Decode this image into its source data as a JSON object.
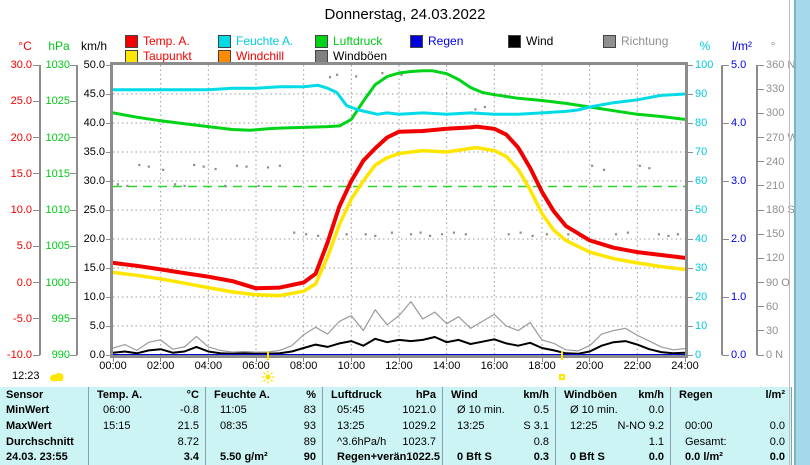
{
  "title": "Donnerstag, 24.03.2022",
  "footer": {
    "time_label": "12:23"
  },
  "legend": {
    "row1": [
      {
        "label": "Temp. A.",
        "swatch": "#f20000",
        "text_color": "#f20000"
      },
      {
        "label": "Feuchte A.",
        "swatch": "#00dbe6",
        "text_color": "#00ccdd"
      },
      {
        "label": "Luftdruck",
        "swatch": "#00d318",
        "text_color": "#00c818"
      },
      {
        "label": "Regen",
        "swatch": "#0000d9",
        "text_color": "#0000e6"
      },
      {
        "label": "Wind",
        "swatch": "#000000",
        "text_color": "#000000"
      },
      {
        "label": "Richtung",
        "swatch": "#8f8f8f",
        "text_color": "#8f8f8f"
      }
    ],
    "row2": [
      {
        "label": "Taupunkt",
        "swatch": "#ffe600",
        "text_color": "#f20000"
      },
      {
        "label": "Windchill",
        "swatch": "#ff8c00",
        "text_color": "#f20000"
      },
      {
        "label": "Windböen",
        "swatch": "#808080",
        "text_color": "#000000"
      }
    ]
  },
  "axes": {
    "temp": {
      "unit": "°C",
      "color": "#f20000",
      "ticks": [
        "30.0",
        "25.0",
        "20.0",
        "15.0",
        "10.0",
        "5.0",
        "0.0",
        "-5.0",
        "-10.0"
      ]
    },
    "pressure": {
      "unit": "hPa",
      "color": "#00c818",
      "ticks": [
        "1030",
        "1025",
        "1020",
        "1015",
        "1010",
        "1005",
        "1000",
        "995",
        "990"
      ]
    },
    "wind": {
      "unit": "km/h",
      "color": "#000000",
      "ticks": [
        "50.0",
        "45.0",
        "40.0",
        "35.0",
        "30.0",
        "25.0",
        "20.0",
        "15.0",
        "10.0",
        "5.0",
        "0.0"
      ]
    },
    "humidity": {
      "unit": "%",
      "color": "#00ccdd",
      "ticks": [
        "100",
        "90",
        "80",
        "70",
        "60",
        "50",
        "40",
        "30",
        "20",
        "10",
        "0"
      ]
    },
    "rain": {
      "unit": "l/m²",
      "color": "#0000e6",
      "ticks": [
        "5.0",
        "4.0",
        "3.0",
        "2.0",
        "1.0",
        "0.0"
      ]
    },
    "direction": {
      "unit": "°",
      "color": "#8f8f8f",
      "ticks": [
        "360 N",
        "330",
        "300",
        "270 W",
        "240",
        "210",
        "180 S",
        "150",
        "120",
        "90 O",
        "60",
        "30",
        "0 N"
      ]
    }
  },
  "x_axis": {
    "labels": [
      "00:00",
      "02:00",
      "04:00",
      "06:00",
      "08:00",
      "10:00",
      "12:00",
      "14:00",
      "16:00",
      "18:00",
      "20:00",
      "22:00",
      "24:00"
    ]
  },
  "sun": {
    "sunrise_hour": 6.5,
    "sunset_hour": 18.85
  },
  "chart_data": {
    "type": "line",
    "x_unit": "hour",
    "axis_ranges": {
      "temp": [
        -10,
        30
      ],
      "pressure": [
        990,
        1030
      ],
      "wind": [
        0,
        50
      ],
      "humidity": [
        0,
        100
      ],
      "rain": [
        0,
        5
      ],
      "direction": [
        0,
        360
      ]
    },
    "reference_line": {
      "axis": "pressure",
      "value": 1013.25,
      "color": "#2fd32f",
      "style": "dashed"
    },
    "series": [
      {
        "name": "Regen",
        "axis": "rain",
        "color": "#0000d9",
        "width": 2,
        "x": [
          0,
          24
        ],
        "values": [
          0,
          0
        ]
      },
      {
        "name": "Luftdruck",
        "axis": "pressure",
        "color": "#00d318",
        "width": 3,
        "x": [
          0,
          1,
          2,
          3,
          4,
          5,
          5.75,
          6.5,
          7,
          8,
          9,
          9.5,
          10,
          10.5,
          11,
          11.5,
          12,
          12.5,
          13,
          13.4,
          14,
          14.5,
          15,
          15.5,
          16,
          17,
          18,
          19,
          20,
          21,
          22,
          23,
          24
        ],
        "values": [
          1023.4,
          1022.8,
          1022.3,
          1021.9,
          1021.5,
          1021.1,
          1021.0,
          1021.2,
          1021.3,
          1021.4,
          1021.5,
          1021.6,
          1022.5,
          1025.0,
          1027.3,
          1028.4,
          1028.9,
          1029.1,
          1029.2,
          1029.2,
          1028.8,
          1028.0,
          1026.9,
          1026.2,
          1025.9,
          1025.4,
          1025.1,
          1024.7,
          1024.2,
          1023.7,
          1023.2,
          1022.9,
          1022.5
        ]
      },
      {
        "name": "Feuchte A.",
        "axis": "humidity",
        "color": "#00dbe6",
        "width": 3,
        "x": [
          0,
          1,
          2,
          3,
          4,
          5,
          6,
          7,
          8,
          8.6,
          9,
          9.4,
          9.8,
          10.3,
          11.1,
          11.5,
          12,
          13,
          14,
          15,
          16,
          17,
          18,
          19,
          19.5,
          20,
          21,
          22,
          23,
          24
        ],
        "values": [
          91.5,
          91.5,
          91.5,
          91.5,
          91.5,
          92,
          92,
          92.5,
          92.5,
          93,
          92,
          90.5,
          86,
          84.5,
          83,
          83.5,
          83,
          83.5,
          83,
          83.5,
          83,
          83,
          83.5,
          84,
          84.5,
          85.5,
          87,
          88,
          89.5,
          90
        ]
      },
      {
        "name": "Taupunkt",
        "axis": "temp",
        "color": "#ffe600",
        "width": 3.5,
        "x": [
          0,
          1,
          2,
          3,
          4,
          5,
          6,
          7,
          8,
          8.5,
          9,
          9.5,
          10,
          10.5,
          11,
          11.5,
          12,
          13,
          14,
          15,
          15.25,
          16,
          16.5,
          17,
          17.5,
          18,
          18.5,
          19,
          20,
          21,
          22,
          23,
          24
        ],
        "values": [
          1.4,
          1.0,
          0.5,
          -0.1,
          -0.7,
          -1.3,
          -1.7,
          -1.8,
          -1.2,
          -0.2,
          3.5,
          8.0,
          11.5,
          14.0,
          16.2,
          17.2,
          17.8,
          18.2,
          18.0,
          18.5,
          18.6,
          18.2,
          17.4,
          15.6,
          12.8,
          9.5,
          7.2,
          5.8,
          4.2,
          3.3,
          2.7,
          2.2,
          1.8
        ]
      },
      {
        "name": "Temp. A.",
        "axis": "temp",
        "color": "#f20000",
        "width": 4,
        "x": [
          0,
          1,
          2,
          3,
          4,
          5,
          6,
          7,
          8,
          8.5,
          9,
          9.5,
          10,
          10.5,
          11,
          11.5,
          12,
          13,
          14,
          15,
          15.25,
          16,
          16.5,
          17,
          17.5,
          18,
          18.5,
          19,
          20,
          21,
          22,
          23,
          24
        ],
        "values": [
          2.7,
          2.3,
          1.8,
          1.3,
          0.8,
          0.2,
          -0.8,
          -0.7,
          0.0,
          1.2,
          5.5,
          10.5,
          14.0,
          16.8,
          18.5,
          20.0,
          20.8,
          20.9,
          21.2,
          21.4,
          21.5,
          21.2,
          20.4,
          18.6,
          15.8,
          12.5,
          9.8,
          7.8,
          5.8,
          4.8,
          4.2,
          3.8,
          3.4
        ]
      }
    ],
    "wind_series": {
      "x_step_hours": 0.5,
      "wind_color": "#000000",
      "gust_color": "#9a9a9a",
      "wind": [
        0.4,
        0.6,
        0.3,
        0.8,
        1.0,
        0.4,
        0.6,
        1.4,
        0.6,
        0.3,
        0.2,
        0.3,
        0.2,
        0.2,
        0.3,
        0.6,
        1.2,
        1.8,
        1.4,
        2.0,
        2.4,
        1.6,
        2.8,
        2.2,
        2.6,
        2.4,
        2.6,
        3.1,
        2.2,
        2.6,
        1.9,
        2.3,
        2.7,
        2.0,
        1.6,
        2.1,
        1.2,
        0.8,
        0.3,
        0.2,
        0.6,
        1.6,
        2.2,
        2.4,
        1.8,
        1.0,
        0.5,
        0.3,
        0.4
      ],
      "gusts": [
        1.2,
        1.8,
        0.8,
        2.2,
        2.6,
        1.0,
        1.4,
        3.2,
        1.4,
        0.8,
        0.5,
        0.6,
        0.5,
        0.5,
        0.8,
        1.6,
        3.5,
        4.8,
        3.6,
        5.8,
        6.8,
        4.2,
        7.8,
        5.2,
        6.8,
        9.2,
        6.2,
        7.4,
        5.4,
        6.6,
        4.6,
        5.8,
        7.0,
        5.0,
        4.2,
        5.6,
        2.6,
        2.0,
        0.9,
        0.7,
        1.6,
        3.6,
        4.2,
        4.6,
        3.4,
        2.4,
        1.4,
        0.9,
        1.1
      ]
    },
    "direction_points": [
      [
        0.2,
        212
      ],
      [
        0.6,
        210
      ],
      [
        1.1,
        236
      ],
      [
        1.5,
        234
      ],
      [
        2.1,
        230
      ],
      [
        2.6,
        212
      ],
      [
        3.0,
        210
      ],
      [
        3.4,
        236
      ],
      [
        3.8,
        234
      ],
      [
        4.3,
        231
      ],
      [
        4.7,
        210
      ],
      [
        5.2,
        235
      ],
      [
        5.6,
        234
      ],
      [
        6.1,
        210
      ],
      [
        6.5,
        233
      ],
      [
        7.0,
        235
      ],
      [
        7.6,
        152
      ],
      [
        8.1,
        150
      ],
      [
        8.6,
        148
      ],
      [
        9.1,
        345
      ],
      [
        9.4,
        348
      ],
      [
        9.8,
        150
      ],
      [
        10.2,
        346
      ],
      [
        10.6,
        150
      ],
      [
        11.0,
        148
      ],
      [
        11.3,
        350
      ],
      [
        11.7,
        152
      ],
      [
        12.1,
        348
      ],
      [
        12.5,
        150
      ],
      [
        12.9,
        152
      ],
      [
        13.3,
        148
      ],
      [
        13.8,
        150
      ],
      [
        14.3,
        152
      ],
      [
        14.8,
        150
      ],
      [
        15.2,
        305
      ],
      [
        15.6,
        308
      ],
      [
        16.1,
        280
      ],
      [
        16.6,
        150
      ],
      [
        17.1,
        152
      ],
      [
        17.6,
        148
      ],
      [
        18.2,
        150
      ],
      [
        19.1,
        150
      ],
      [
        19.6,
        148
      ],
      [
        20.1,
        235
      ],
      [
        20.6,
        230
      ],
      [
        21.1,
        150
      ],
      [
        21.6,
        152
      ],
      [
        22.1,
        235
      ],
      [
        22.5,
        232
      ],
      [
        22.9,
        150
      ],
      [
        23.3,
        148
      ],
      [
        23.7,
        150
      ]
    ]
  },
  "table": {
    "col_headers": [
      [
        "Sensor",
        ""
      ],
      [
        "Temp. A.",
        "°C"
      ],
      [
        "Feuchte A.",
        "%"
      ],
      [
        "Luftdruck",
        "hPa"
      ],
      [
        "Wind",
        "km/h"
      ],
      [
        "Windböen",
        "km/h"
      ],
      [
        "Regen",
        "l/m²"
      ]
    ],
    "rows": [
      {
        "label": "MinWert",
        "bold_values": false,
        "cells": [
          [
            "06:00",
            "-0.8"
          ],
          [
            "11:05",
            "83"
          ],
          [
            "05:45",
            "1021.0"
          ],
          [
            "Ø 10 min.",
            "0.5"
          ],
          [
            "Ø 10 min.",
            "0.0"
          ],
          [
            "",
            ""
          ]
        ]
      },
      {
        "label": "MaxWert",
        "bold_values": false,
        "cells": [
          [
            "15:15",
            "21.5"
          ],
          [
            "08:35",
            "93"
          ],
          [
            "13:25",
            "1029.2"
          ],
          [
            "13:25",
            "S 3.1"
          ],
          [
            "12:25",
            "N-NO 9.2"
          ],
          [
            "00:00",
            "0.0"
          ]
        ]
      },
      {
        "label": "Durchschnitt",
        "bold_values": false,
        "cells": [
          [
            "",
            "8.72"
          ],
          [
            "",
            "89"
          ],
          [
            "^3.6hPa/h",
            "1023.7"
          ],
          [
            "",
            "0.8"
          ],
          [
            "",
            "1.1"
          ],
          [
            "Gesamt:",
            "0.0"
          ]
        ]
      },
      {
        "label": "24.03. 23:55",
        "bold_values": true,
        "cells": [
          [
            "",
            "3.4"
          ],
          [
            "5.50 g/m²",
            "90"
          ],
          [
            "Regen+verän",
            "1022.5"
          ],
          [
            "0 Bft S",
            "0.3"
          ],
          [
            "0 Bft S",
            "0.0"
          ],
          [
            "0.0 l/m²",
            "0.0"
          ]
        ]
      }
    ]
  }
}
